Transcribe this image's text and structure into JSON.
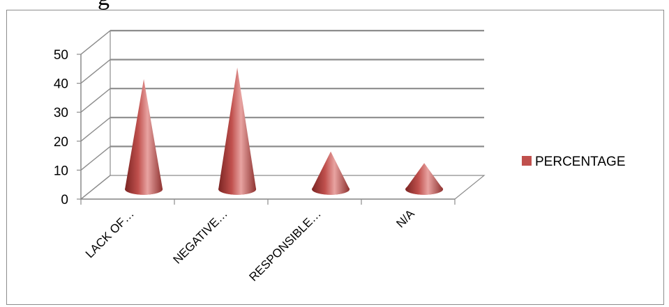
{
  "page": {
    "title_fragment": "g"
  },
  "chart_data": {
    "type": "bar",
    "shape": "cone-3d",
    "categories": [
      "LACK OF…",
      "NEGATIVE…",
      "RESPONSIBLE…",
      "N/A"
    ],
    "series": [
      {
        "name": "PERCENTAGE",
        "values": [
          38,
          42,
          13,
          9
        ]
      }
    ],
    "title": "",
    "xlabel": "",
    "ylabel": "",
    "ylim": [
      0,
      50
    ],
    "yticks": [
      0,
      10,
      20,
      30,
      40,
      50
    ],
    "grid": true,
    "legend": "right",
    "colors": {
      "series": "#C0504D",
      "series_light": "#E8A3A1",
      "series_dark": "#7A2422",
      "grid": "#8c8c8c",
      "axis": "#8c8c8c"
    }
  }
}
